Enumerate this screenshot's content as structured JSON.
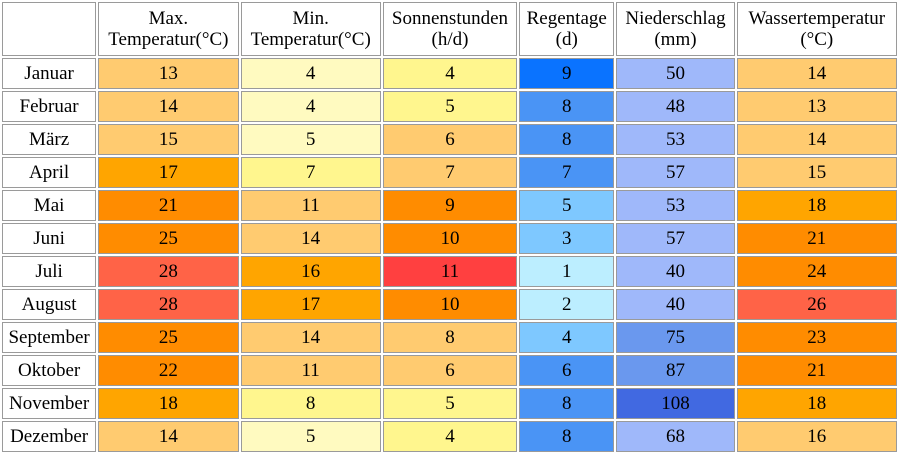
{
  "headers": [
    {
      "line1": "",
      "line2": ""
    },
    {
      "line1": "Max.",
      "line2": "Temperatur(°C)"
    },
    {
      "line1": "Min.",
      "line2": "Temperatur(°C)"
    },
    {
      "line1": "Sonnenstunden",
      "line2": "(h/d)"
    },
    {
      "line1": "Regentage",
      "line2": "(d)"
    },
    {
      "line1": "Niederschlag",
      "line2": "(mm)"
    },
    {
      "line1": "Wassertemperatur",
      "line2": "(°C)"
    }
  ],
  "rows": [
    {
      "month": "Januar",
      "cells": [
        {
          "value": "13",
          "bg": "#FFCB70"
        },
        {
          "value": "4",
          "bg": "#FFFAC0"
        },
        {
          "value": "4",
          "bg": "#FFF68E"
        },
        {
          "value": "9",
          "bg": "#0A73FF"
        },
        {
          "value": "50",
          "bg": "#9FB8FA"
        },
        {
          "value": "14",
          "bg": "#FFCB70"
        }
      ]
    },
    {
      "month": "Februar",
      "cells": [
        {
          "value": "14",
          "bg": "#FFCB70"
        },
        {
          "value": "4",
          "bg": "#FFFAC0"
        },
        {
          "value": "5",
          "bg": "#FFF68E"
        },
        {
          "value": "8",
          "bg": "#4A94F5"
        },
        {
          "value": "48",
          "bg": "#9FB8FA"
        },
        {
          "value": "13",
          "bg": "#FFCB70"
        }
      ]
    },
    {
      "month": "März",
      "cells": [
        {
          "value": "15",
          "bg": "#FFCB70"
        },
        {
          "value": "5",
          "bg": "#FFFAC0"
        },
        {
          "value": "6",
          "bg": "#FFCB70"
        },
        {
          "value": "8",
          "bg": "#4A94F5"
        },
        {
          "value": "53",
          "bg": "#9FB8FA"
        },
        {
          "value": "14",
          "bg": "#FFCB70"
        }
      ]
    },
    {
      "month": "April",
      "cells": [
        {
          "value": "17",
          "bg": "#FFA500"
        },
        {
          "value": "7",
          "bg": "#FFF68E"
        },
        {
          "value": "7",
          "bg": "#FFCB70"
        },
        {
          "value": "7",
          "bg": "#4A94F5"
        },
        {
          "value": "57",
          "bg": "#9FB8FA"
        },
        {
          "value": "15",
          "bg": "#FFCB70"
        }
      ]
    },
    {
      "month": "Mai",
      "cells": [
        {
          "value": "21",
          "bg": "#FF8C00"
        },
        {
          "value": "11",
          "bg": "#FFCB70"
        },
        {
          "value": "9",
          "bg": "#FF8C00"
        },
        {
          "value": "5",
          "bg": "#7EC8FF"
        },
        {
          "value": "53",
          "bg": "#9FB8FA"
        },
        {
          "value": "18",
          "bg": "#FFA500"
        }
      ]
    },
    {
      "month": "Juni",
      "cells": [
        {
          "value": "25",
          "bg": "#FF8C00"
        },
        {
          "value": "14",
          "bg": "#FFCB70"
        },
        {
          "value": "10",
          "bg": "#FF8C00"
        },
        {
          "value": "3",
          "bg": "#7EC8FF"
        },
        {
          "value": "57",
          "bg": "#9FB8FA"
        },
        {
          "value": "21",
          "bg": "#FF8C00"
        }
      ]
    },
    {
      "month": "Juli",
      "cells": [
        {
          "value": "28",
          "bg": "#FF6347"
        },
        {
          "value": "16",
          "bg": "#FFA500"
        },
        {
          "value": "11",
          "bg": "#FF4040"
        },
        {
          "value": "1",
          "bg": "#BCEEFF"
        },
        {
          "value": "40",
          "bg": "#9FB8FA"
        },
        {
          "value": "24",
          "bg": "#FF8C00"
        }
      ]
    },
    {
      "month": "August",
      "cells": [
        {
          "value": "28",
          "bg": "#FF6347"
        },
        {
          "value": "17",
          "bg": "#FFA500"
        },
        {
          "value": "10",
          "bg": "#FF8C00"
        },
        {
          "value": "2",
          "bg": "#BCEEFF"
        },
        {
          "value": "40",
          "bg": "#9FB8FA"
        },
        {
          "value": "26",
          "bg": "#FF6347"
        }
      ]
    },
    {
      "month": "September",
      "cells": [
        {
          "value": "25",
          "bg": "#FF8C00"
        },
        {
          "value": "14",
          "bg": "#FFCB70"
        },
        {
          "value": "8",
          "bg": "#FFCB70"
        },
        {
          "value": "4",
          "bg": "#7EC8FF"
        },
        {
          "value": "75",
          "bg": "#6A98EE"
        },
        {
          "value": "23",
          "bg": "#FF8C00"
        }
      ]
    },
    {
      "month": "Oktober",
      "cells": [
        {
          "value": "22",
          "bg": "#FF8C00"
        },
        {
          "value": "11",
          "bg": "#FFCB70"
        },
        {
          "value": "6",
          "bg": "#FFCB70"
        },
        {
          "value": "6",
          "bg": "#4A94F5"
        },
        {
          "value": "87",
          "bg": "#6A98EE"
        },
        {
          "value": "21",
          "bg": "#FF8C00"
        }
      ]
    },
    {
      "month": "November",
      "cells": [
        {
          "value": "18",
          "bg": "#FFA500"
        },
        {
          "value": "8",
          "bg": "#FFF68E"
        },
        {
          "value": "5",
          "bg": "#FFF68E"
        },
        {
          "value": "8",
          "bg": "#4A94F5"
        },
        {
          "value": "108",
          "bg": "#4169E1"
        },
        {
          "value": "18",
          "bg": "#FFA500"
        }
      ]
    },
    {
      "month": "Dezember",
      "cells": [
        {
          "value": "14",
          "bg": "#FFCB70"
        },
        {
          "value": "5",
          "bg": "#FFFAC0"
        },
        {
          "value": "4",
          "bg": "#FFF68E"
        },
        {
          "value": "8",
          "bg": "#4A94F5"
        },
        {
          "value": "68",
          "bg": "#9FB8FA"
        },
        {
          "value": "16",
          "bg": "#FFCB70"
        }
      ]
    }
  ]
}
